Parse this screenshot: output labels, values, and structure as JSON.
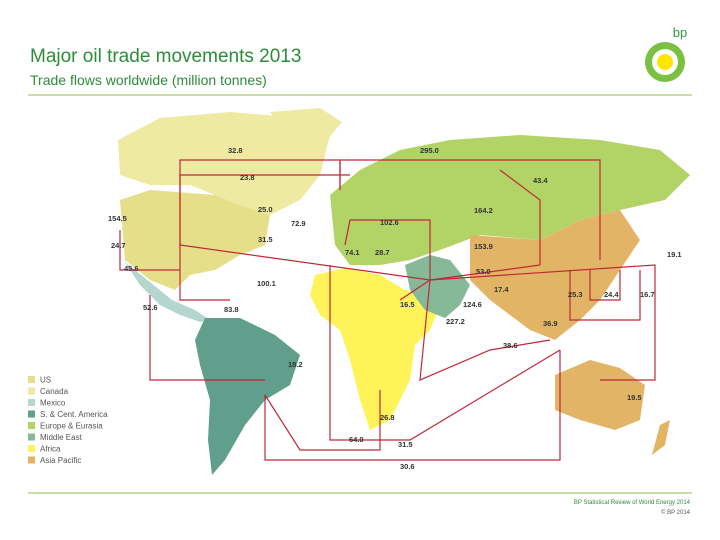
{
  "header": {
    "title": "Major oil trade movements 2013",
    "subtitle": "Trade flows worldwide (million tonnes)",
    "logo": "bp"
  },
  "flow_labels": [
    "32.8",
    "295.0",
    "23.8",
    "43.4",
    "154.5",
    "25.0",
    "72.9",
    "102.6",
    "164.2",
    "31.5",
    "24.7",
    "153.9",
    "19.1",
    "74.1",
    "28.7",
    "45.6",
    "53.0",
    "100.1",
    "17.4",
    "25.3",
    "24.4",
    "16.7",
    "16.5",
    "124.6",
    "52.6",
    "83.8",
    "227.2",
    "36.9",
    "38.6",
    "18.2",
    "19.5",
    "26.8",
    "64.0",
    "31.5",
    "30.6"
  ],
  "legend": [
    {
      "name": "US",
      "color": "#e6df8a"
    },
    {
      "name": "Canada",
      "color": "#eeeaa2"
    },
    {
      "name": "Mexico",
      "color": "#b5d6cf"
    },
    {
      "name": "S. & Cent. America",
      "color": "#5f9f8b"
    },
    {
      "name": "Europe & Eurasia",
      "color": "#b2d366"
    },
    {
      "name": "Middle East",
      "color": "#86b997"
    },
    {
      "name": "Africa",
      "color": "#fff35a"
    },
    {
      "name": "Asia Pacific",
      "color": "#e1b565"
    }
  ],
  "footer": {
    "source": "BP Statistical Review of World Energy 2014",
    "copyright": "© BP 2014"
  }
}
